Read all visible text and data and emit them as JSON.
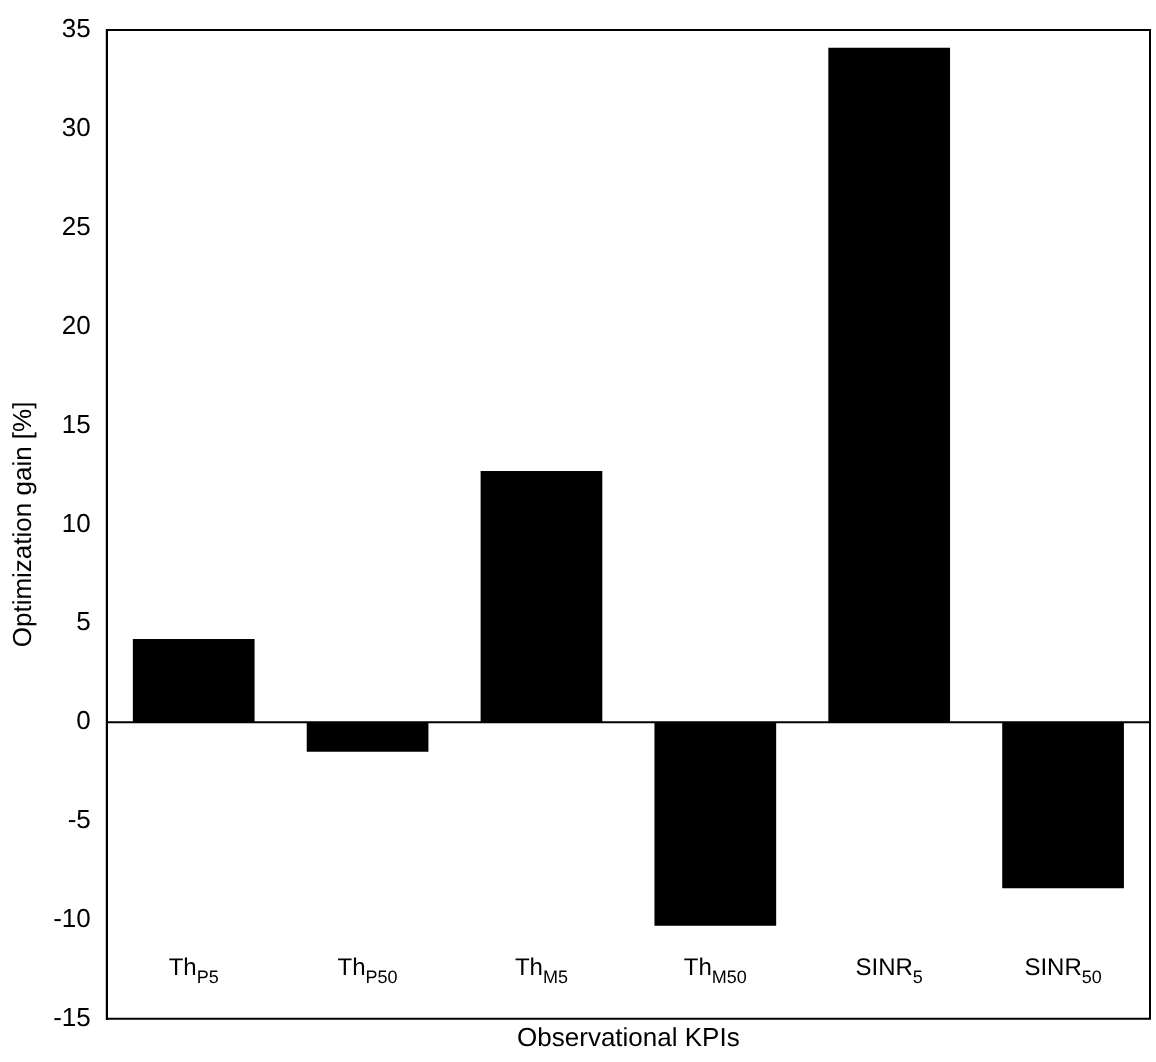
{
  "chart_data": {
    "type": "bar",
    "xlabel": "Observational KPIs",
    "ylabel": "Optimization gain [%]",
    "categories": [
      "Th$_{P5}$",
      "Th$_{P50}$",
      "Th$_{M5}$",
      "Th$_{M50}$",
      "SINR$_{5}$",
      "SINR$_{50}$"
    ],
    "values": [
      4.2,
      -1.5,
      12.7,
      -10.3,
      34.1,
      -8.4
    ],
    "color": "#000000",
    "ylim": [
      -15,
      35
    ],
    "yticks": [
      -15,
      -10,
      -5,
      0,
      5,
      10,
      15,
      20,
      25,
      30,
      35
    ],
    "grid": false,
    "ref_lines": [
      {
        "axis": "y",
        "value": 0,
        "color": "#000000"
      }
    ]
  }
}
